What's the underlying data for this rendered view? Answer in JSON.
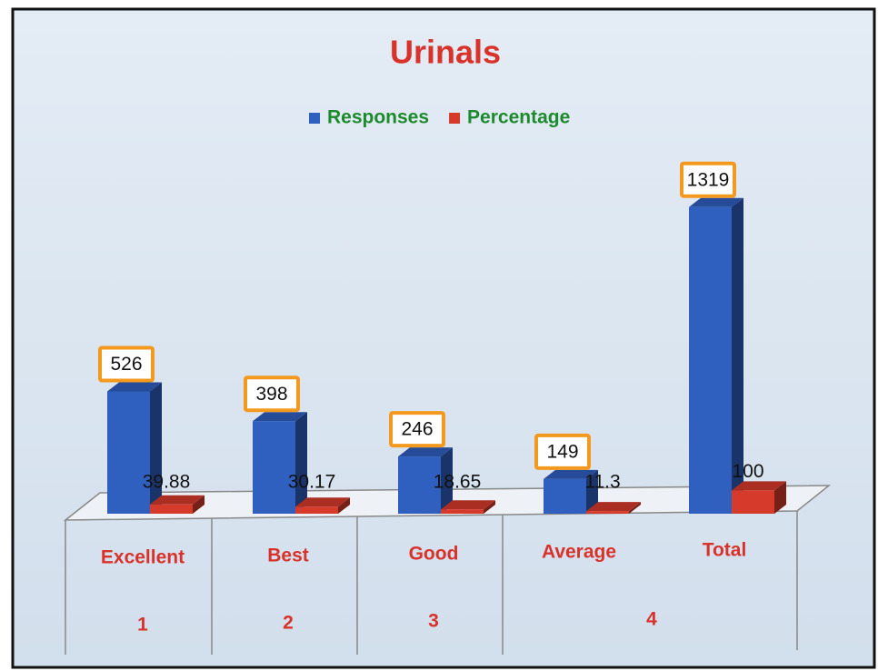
{
  "chart_data": {
    "type": "bar3d",
    "title": "Urinals",
    "categories": [
      "Excellent",
      "Best",
      "Good",
      "Average",
      "Total"
    ],
    "groups": [
      "1",
      "2",
      "3",
      "4"
    ],
    "series": [
      {
        "name": "Responses",
        "color": "#2f5fbf",
        "values": [
          526,
          398,
          246,
          149,
          1319
        ]
      },
      {
        "name": "Percentage",
        "color": "#d63a2b",
        "values": [
          39.88,
          30.17,
          18.65,
          11.3,
          100
        ]
      }
    ],
    "ylim": [
      0,
      1400
    ]
  }
}
